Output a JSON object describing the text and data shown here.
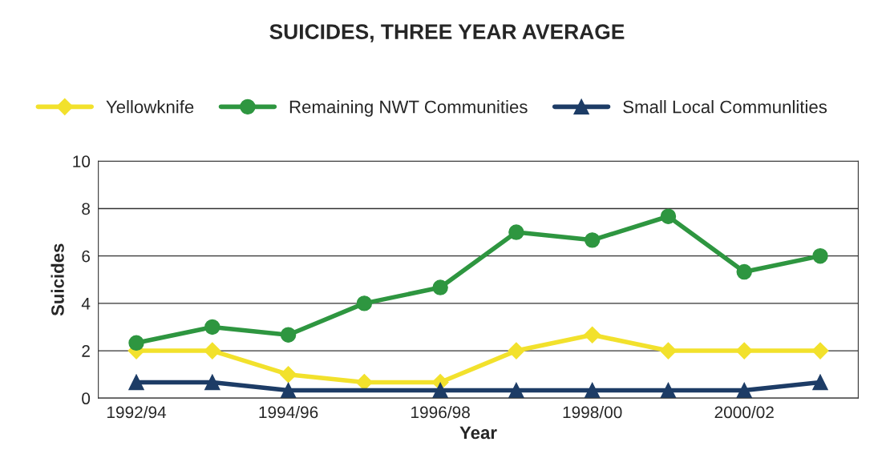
{
  "chart_data": {
    "type": "line",
    "title": "SUICIDES, THREE YEAR AVERAGE",
    "xlabel": "Year",
    "ylabel": "Suicides",
    "categories": [
      "1992/94",
      null,
      "1994/96",
      null,
      "1996/98",
      null,
      "1998/00",
      null,
      "2000/02",
      null
    ],
    "series": [
      {
        "name": "Yellowknife",
        "color": "#f2e12c",
        "marker": "diamond",
        "values": [
          2,
          2,
          1,
          0.67,
          0.67,
          2,
          2.67,
          2,
          2,
          2
        ]
      },
      {
        "name": "Remaining NWT Communities",
        "color": "#2e9640",
        "marker": "circle",
        "values": [
          2.33,
          3,
          2.67,
          4,
          4.67,
          7,
          6.67,
          7.67,
          5.33,
          6
        ]
      },
      {
        "name": "Small Local Communlities",
        "color": "#1d3c66",
        "marker": "triangle",
        "values": [
          0.67,
          0.67,
          0.33,
          null,
          0.33,
          0.33,
          0.33,
          0.33,
          0.33,
          0.67
        ]
      }
    ],
    "ylim": [
      0,
      10
    ],
    "yticks": [
      0,
      2,
      4,
      6,
      8,
      10
    ],
    "grid": "y",
    "legend": "top"
  }
}
